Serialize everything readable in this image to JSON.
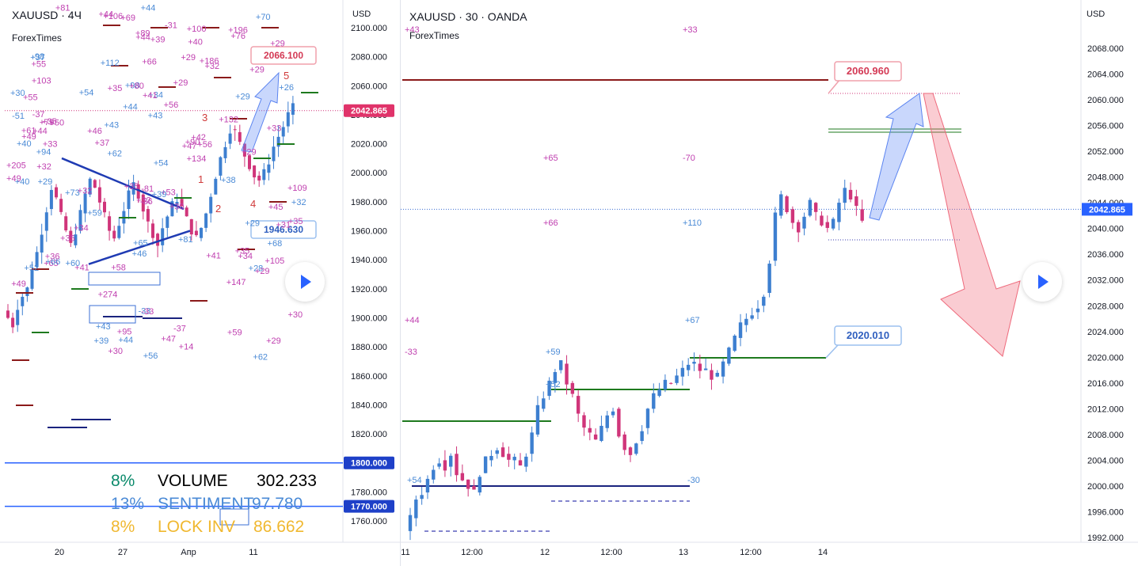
{
  "left": {
    "title": "XAUUSD · 4Ч",
    "subtitle": "ForexTimes",
    "axis_label": "USD",
    "y_ticks": [
      "2100.000",
      "2080.000",
      "2060.000",
      "2040.000",
      "2020.000",
      "2000.000",
      "1980.000",
      "1960.000",
      "1940.000",
      "1920.000",
      "1900.000",
      "1880.000",
      "1860.000",
      "1840.000",
      "1820.000",
      "1780.000",
      "1760.000"
    ],
    "price_tag": "2042.865",
    "level_tags": [
      "1800.000",
      "1770.000"
    ],
    "x_ticks": [
      "20",
      "27",
      "Апр",
      "11"
    ],
    "callouts": {
      "upper": "2066.100",
      "lower": "1946.630"
    },
    "wave_labels": [
      "1",
      "2",
      "3",
      "4",
      "5"
    ],
    "table": {
      "rows": [
        {
          "pct": "8%",
          "label": "VOLUME",
          "value": "302.233",
          "color": "#0b8a6b"
        },
        {
          "pct": "13%",
          "label": "SENTIMENT",
          "value": "97.780",
          "color": "#4a8ad6"
        },
        {
          "pct": "8%",
          "label": "LOCK INV",
          "value": "86.662",
          "color": "#f0b830"
        }
      ],
      "label_color": "#000000"
    },
    "annotations": [
      "+89",
      "+32",
      "+56",
      "+147",
      "+54",
      "+105",
      "+49",
      "+56",
      "+186",
      "+32",
      "+73",
      "+44",
      "+109",
      "+40",
      "+35",
      "+41",
      "+43",
      "+47",
      "+29",
      "+62",
      "+45",
      "+55",
      "+34",
      "+35",
      "+106",
      "+52",
      "-36",
      "+29",
      "+98",
      "+69",
      "+65",
      "+70",
      "+56",
      "+35",
      "+38",
      "+34",
      "+29",
      "+44",
      "+29",
      "+103",
      "+66",
      "+14",
      "+46",
      "+112",
      "+31",
      "+34",
      "+59",
      "+36",
      "+35",
      "+43",
      "+30",
      "+33",
      "+28",
      "+53",
      "+90",
      "-98",
      "+95",
      "+59",
      "-33",
      "+44",
      "+33",
      "+54",
      "+61",
      "+30",
      "+29",
      "-31",
      "+66",
      "+43",
      "+32",
      "+29",
      "+81",
      "+39",
      "+49",
      "+44",
      "+40",
      "-37",
      "+65",
      "+30",
      "+81",
      "+62",
      "+29",
      "-37",
      "-51",
      "+100",
      "+42",
      "+39",
      "+29",
      "+41",
      "+30",
      "+35",
      "+55",
      "+39",
      "+47",
      "+44",
      "+37",
      "+50",
      "+79",
      "+94",
      "+274",
      "-81",
      "+68",
      "+58",
      "+41",
      "+29",
      "+134",
      "-33",
      "+29",
      "+80",
      "+35",
      "+60",
      "+32",
      "+196",
      "+44",
      "+205",
      "+132",
      "+40",
      "+32",
      "+49",
      "+46",
      "+76",
      "+30",
      "+26",
      "+37"
    ]
  },
  "right": {
    "title": "XAUUSD · 30 · OANDA",
    "subtitle": "ForexTimes",
    "axis_label": "USD",
    "y_ticks": [
      "2068.000",
      "2064.000",
      "2060.000",
      "2056.000",
      "2052.000",
      "2048.000",
      "2044.000",
      "2040.000",
      "2036.000",
      "2032.000",
      "2028.000",
      "2024.000",
      "2020.000",
      "2016.000",
      "2012.000",
      "2008.000",
      "2004.000",
      "2000.000",
      "1996.000",
      "1992.000"
    ],
    "price_tag": "2042.865",
    "x_ticks": [
      "11",
      "12:00",
      "12",
      "12:00",
      "13",
      "12:00",
      "14"
    ],
    "callouts": {
      "upper": "2060.960",
      "lower": "2020.010"
    },
    "annotations": [
      "+43",
      "+33",
      "+65",
      "-70",
      "+66",
      "+110",
      "+44",
      "+67",
      "-33",
      "+59",
      "+52",
      "+54",
      "-30"
    ]
  },
  "chart_data": [
    {
      "type": "candlestick",
      "title": "XAUUSD · 4Ч",
      "ylabel": "USD",
      "ylim": [
        1750,
        2110
      ],
      "x_ticks": [
        "20",
        "27",
        "Апр",
        "11"
      ],
      "last_price": 2042.865,
      "levels": [
        1800.0,
        1770.0
      ],
      "targets": {
        "upper": 2066.1,
        "lower": 1946.63
      },
      "wave_count": [
        "1",
        "2",
        "3",
        "4",
        "5"
      ]
    },
    {
      "type": "candlestick",
      "title": "XAUUSD · 30 · OANDA",
      "ylabel": "USD",
      "ylim": [
        1991,
        2072
      ],
      "x_ticks": [
        "11",
        "12:00",
        "12",
        "12:00",
        "13",
        "12:00",
        "14"
      ],
      "last_price": 2042.865,
      "targets": {
        "upper": 2060.96,
        "lower": 2020.01
      }
    }
  ],
  "colors": {
    "up": "#3d7fd0",
    "down": "#d0357a",
    "tag_red": "#e0336a",
    "tag_blue": "#2962ff",
    "level_red": "#8b1a1a",
    "level_green": "#1e7a1e",
    "level_navy": "#1a237e"
  }
}
